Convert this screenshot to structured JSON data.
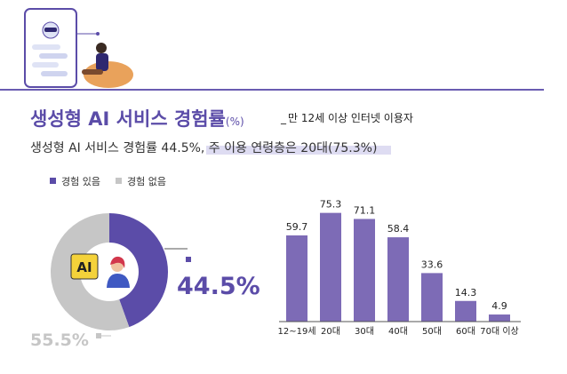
{
  "header": {
    "title": "생성형 AI 서비스 경험률",
    "title_unit": "(%)",
    "title_sub": "만 12세 이상 인터넷 이용자",
    "subtitle": "생성형 AI 서비스 경험률 44.5%, 주 이용 연령층은 20대(75.3%)"
  },
  "colors": {
    "primary": "#5b4ca8",
    "bar": "#7d6bb6",
    "gray": "#c6c6c6",
    "axis": "#555555"
  },
  "chart_data": [
    {
      "type": "pie",
      "categories": [
        "경험 있음",
        "경험 없음"
      ],
      "values": [
        44.5,
        55.5
      ],
      "value_labels": [
        "44.5%",
        "55.5%"
      ],
      "legend": "top-left",
      "colors": [
        "#5b4ca8",
        "#c6c6c6"
      ]
    },
    {
      "type": "bar",
      "categories": [
        "12~19세",
        "20대",
        "30대",
        "40대",
        "50대",
        "60대",
        "70대 이상"
      ],
      "values": [
        59.7,
        75.3,
        71.1,
        58.4,
        33.6,
        14.3,
        4.9
      ],
      "ylim": [
        0,
        80
      ],
      "grid": false,
      "color": "#7d6bb6"
    }
  ],
  "illustration": {
    "badge_text": "AI"
  }
}
